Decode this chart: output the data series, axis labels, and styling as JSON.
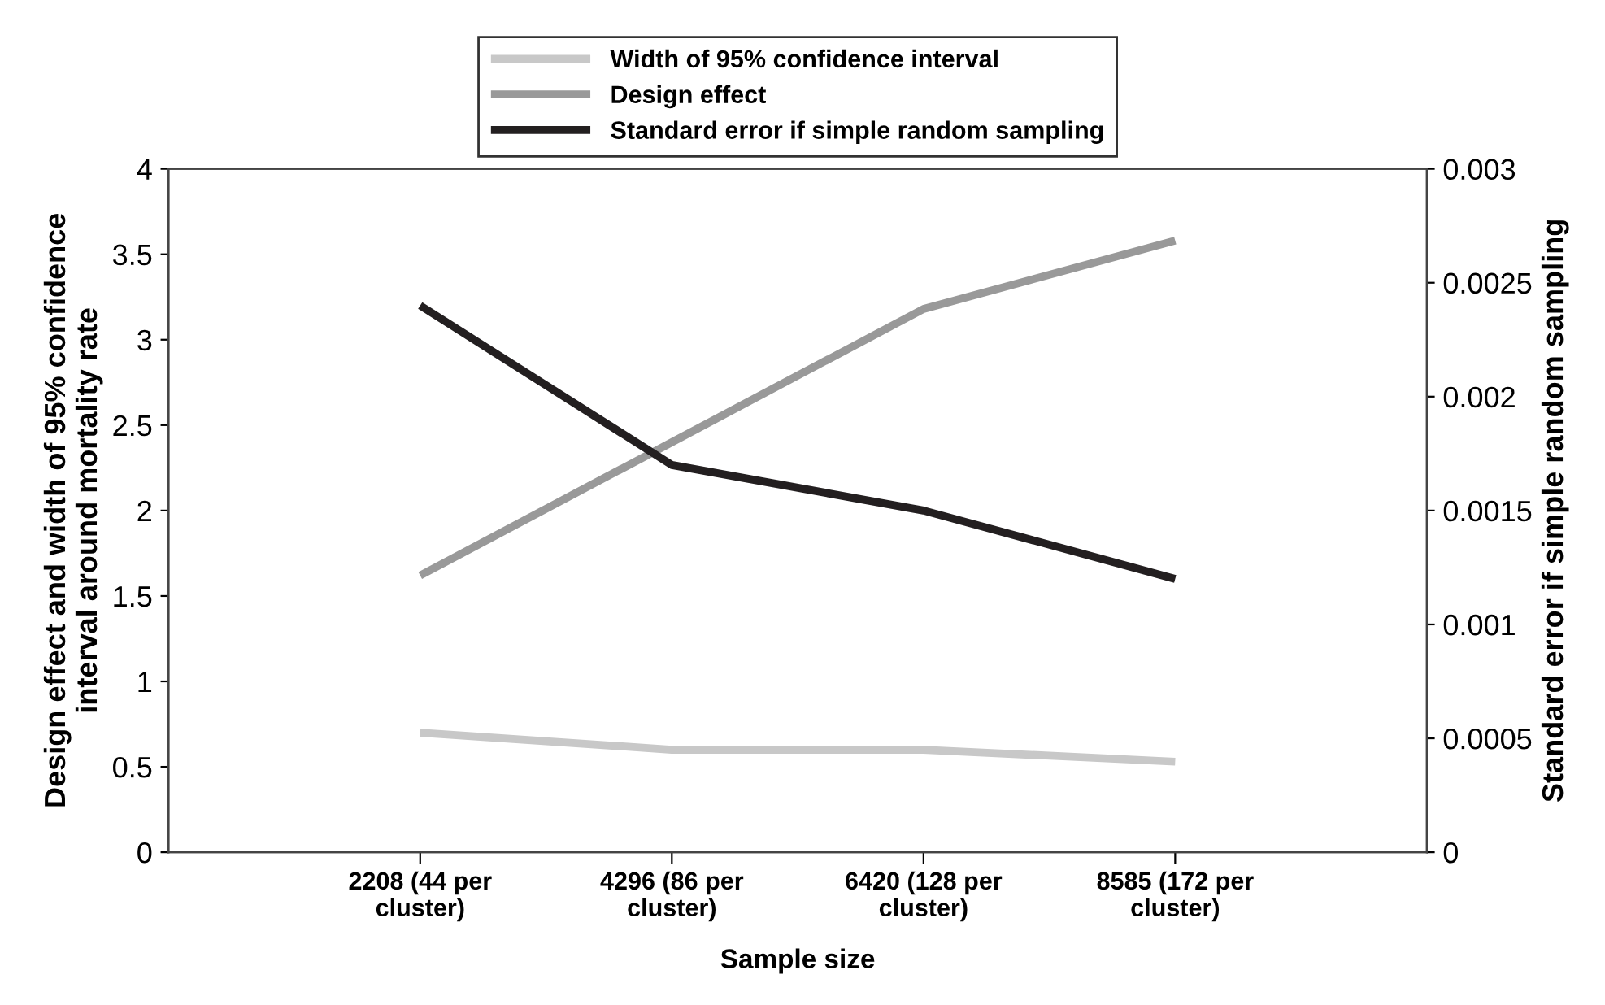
{
  "chart_data": {
    "type": "line",
    "xlabel": "Sample size",
    "ylabel": "Design effect and width of 95% confidence\ninterval around mortality rate",
    "y2label": "Standard error if simple random sampling",
    "categories": [
      "2208 (44 per\ncluster)",
      "4296 (86 per\ncluster)",
      "6420 (128 per\ncluster)",
      "8585 (172 per\ncluster)"
    ],
    "series": [
      {
        "name": "Width of 95% confidence interval",
        "color": "#c8c8c8",
        "values": [
          0.7,
          0.6,
          0.6,
          0.53
        ]
      },
      {
        "name": "Design effect",
        "color": "#999999",
        "values": [
          1.62,
          2.4,
          3.18,
          3.58
        ]
      },
      {
        "name": "Standard error if simple random sampling",
        "color": "#231f20",
        "axis": "y2",
        "values": [
          0.0024,
          0.0017,
          0.0015,
          0.0012
        ]
      }
    ],
    "ylim": [
      0,
      4
    ],
    "yticks": [
      0,
      0.5,
      1,
      1.5,
      2,
      2.5,
      3,
      3.5,
      4
    ],
    "y2lim": [
      0,
      0.003
    ],
    "y2ticks": [
      0,
      0.0005,
      0.001,
      0.0015,
      0.002,
      0.0025,
      0.003
    ],
    "grid": false,
    "legend": "top",
    "marker": "none",
    "line_style": "solid"
  }
}
